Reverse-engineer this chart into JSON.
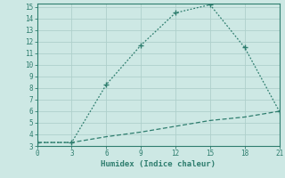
{
  "x": [
    0,
    3,
    6,
    9,
    12,
    15,
    18,
    21
  ],
  "y_line1": [
    3.3,
    3.3,
    8.3,
    11.7,
    14.5,
    15.2,
    11.5,
    6.0
  ],
  "y_line2": [
    3.3,
    3.3,
    3.8,
    4.2,
    4.7,
    5.2,
    5.5,
    6.0
  ],
  "line_color": "#2e7d6e",
  "bg_color": "#cde8e4",
  "xlabel": "Humidex (Indice chaleur)",
  "xlim": [
    0,
    21
  ],
  "ylim": [
    3,
    15.3
  ],
  "xticks": [
    0,
    3,
    6,
    9,
    12,
    15,
    18,
    21
  ],
  "yticks": [
    3,
    4,
    5,
    6,
    7,
    8,
    9,
    10,
    11,
    12,
    13,
    14,
    15
  ],
  "grid_color": "#aed0cb"
}
